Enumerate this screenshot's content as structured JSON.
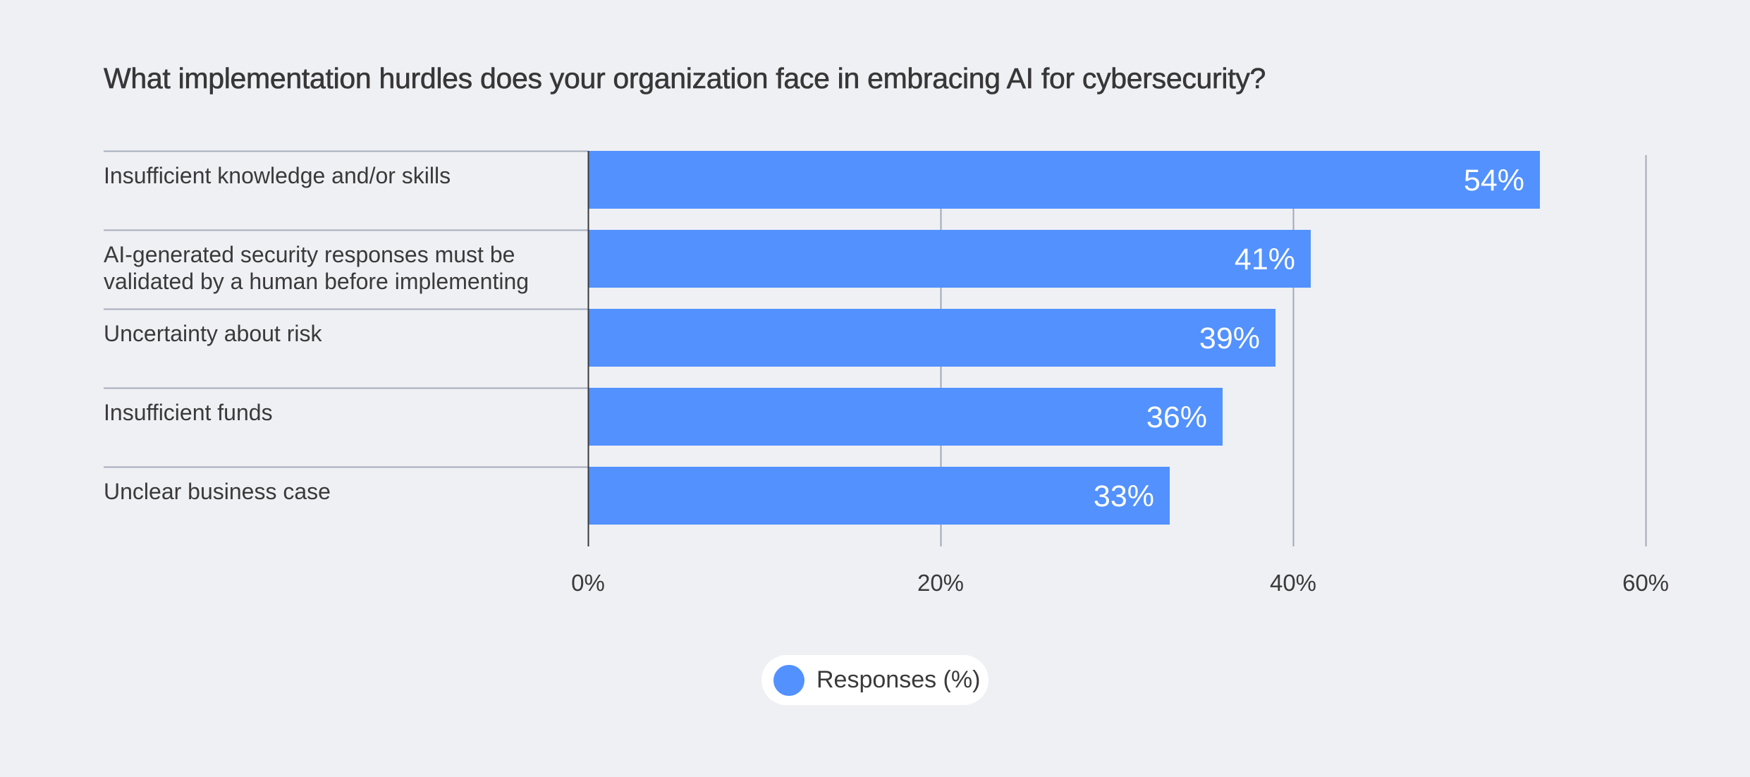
{
  "chart_data": {
    "type": "bar",
    "orientation": "horizontal",
    "title": "What implementation hurdles does your organization face in embracing AI for cybersecurity?",
    "categories": [
      [
        "Insufficient knowledge and/or skills"
      ],
      [
        "AI-generated security responses must be",
        "validated by a human before implementing"
      ],
      [
        "Uncertainty about risk"
      ],
      [
        "Insufficient funds"
      ],
      [
        "Unclear business case"
      ]
    ],
    "series": [
      {
        "name": "Responses (%)",
        "values": [
          54,
          41,
          39,
          36,
          33
        ],
        "labels": [
          "54%",
          "41%",
          "39%",
          "36%",
          "33%"
        ],
        "color": "#5291ff"
      }
    ],
    "xlim": [
      0,
      60
    ],
    "xticks": [
      0,
      20,
      40,
      60
    ],
    "xtick_labels": [
      "0%",
      "20%",
      "40%",
      "60%"
    ],
    "xlabel": "",
    "ylabel": "",
    "grid": true,
    "legend_position": "bottom-center"
  },
  "title": "What implementation hurdles does your organization face in embracing AI for cybersecurity?",
  "legend": {
    "label": "Responses (%)",
    "color": "#5291ff"
  },
  "colors": {
    "background": "#eff0f4",
    "bar": "#5291ff",
    "axis": "#3a3a3a",
    "grid": "#a2a8b7",
    "divider": "#a7adbd",
    "text": "#3b3a3a"
  }
}
